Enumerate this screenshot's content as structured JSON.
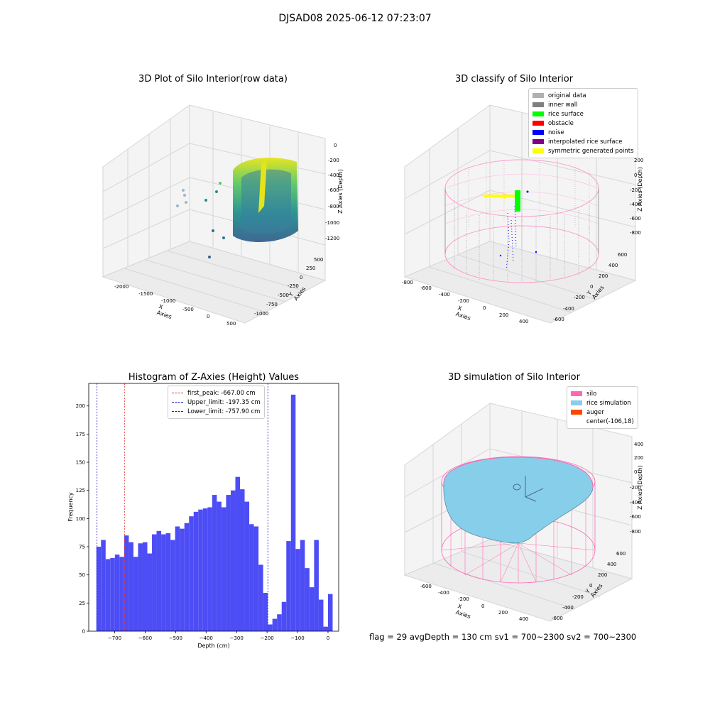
{
  "figure_title": "DJSAD08 2025-06-12 07:23:07",
  "footer": "flag = 29  avgDepth = 130 cm  sv1 = 700~2300  sv2 = 700~2300",
  "colors": {
    "hist_bar": "#4d4df5",
    "first_peak": "#e03030",
    "limits": "#2020c8",
    "silo": "#ff69b4",
    "rice_simulation": "#87ceeb",
    "auger": "#ff4500"
  },
  "panel1": {
    "title": "3D Plot of Silo Interior(row data)",
    "xlabel": "X Axies",
    "ylabel": "Y Axies",
    "zlabel": "Z Axies (Depth)",
    "x_ticks": [
      "-2000",
      "-1500",
      "-1000",
      "-500",
      "0",
      "500"
    ],
    "y_ticks": [
      "500",
      "250",
      "0",
      "-250",
      "-500",
      "-750",
      "-1000"
    ],
    "z_ticks": [
      "0",
      "-200",
      "-400",
      "-600",
      "-800",
      "-1000",
      "-1200"
    ]
  },
  "panel2": {
    "title": "3D classify of Silo Interior",
    "xlabel": "X Axies",
    "ylabel": "Y Axies",
    "zlabel": "Z Axies (Depth)",
    "x_ticks": [
      "-800",
      "-600",
      "-400",
      "-200",
      "0",
      "200",
      "400"
    ],
    "y_ticks": [
      "600",
      "400",
      "200",
      "0",
      "-200",
      "-400",
      "-600"
    ],
    "z_ticks": [
      "200",
      "0",
      "-200",
      "-400",
      "-600",
      "-800"
    ],
    "legend": [
      {
        "label": "original data",
        "color": "#b0b0b0"
      },
      {
        "label": "inner wall",
        "color": "#808080"
      },
      {
        "label": "rice surface",
        "color": "#00ff00"
      },
      {
        "label": "obstacle",
        "color": "#ff0000"
      },
      {
        "label": "noise",
        "color": "#0000ff"
      },
      {
        "label": "interpolated rice surface",
        "color": "#800080"
      },
      {
        "label": "symmetric generated points",
        "color": "#ffff00"
      }
    ]
  },
  "panel4": {
    "title": "3D simulation of Silo Interior",
    "xlabel": "X Axies",
    "ylabel": "Y Axies",
    "zlabel": "Z Axies (Depth)",
    "x_ticks": [
      "-600",
      "-400",
      "-200",
      "0",
      "200",
      "400"
    ],
    "y_ticks": [
      "600",
      "400",
      "200",
      "0",
      "-200",
      "-400",
      "-600"
    ],
    "z_ticks": [
      "400",
      "200",
      "0",
      "-200",
      "-400",
      "-600",
      "-800"
    ],
    "legend": [
      {
        "label": "silo",
        "color": "#ff69b4"
      },
      {
        "label": "rice simulation",
        "color": "#87ceeb"
      },
      {
        "label": "auger",
        "color": "#ff4500"
      },
      {
        "label": "center(-106,18)",
        "color": ""
      }
    ]
  },
  "chart_data": [
    {
      "type": "histogram",
      "title": "Histogram of Z-Axies (Height) Values",
      "xlabel": "Depth (cm)",
      "ylabel": "Frequency",
      "xlim": [
        -785,
        35
      ],
      "ylim": [
        0,
        220
      ],
      "x_ticks": [
        -700,
        -600,
        -500,
        -400,
        -300,
        -200,
        -100,
        0
      ],
      "y_ticks": [
        0,
        25,
        50,
        75,
        100,
        125,
        150,
        175,
        200
      ],
      "bin_start": -760,
      "bin_width": 15.2,
      "values": [
        75,
        81,
        64,
        65,
        68,
        66,
        85,
        79,
        66,
        78,
        79,
        69,
        86,
        89,
        86,
        87,
        81,
        93,
        91,
        96,
        102,
        106,
        108,
        109,
        110,
        121,
        115,
        110,
        121,
        125,
        137,
        126,
        115,
        95,
        93,
        59,
        34,
        6,
        11,
        15,
        26,
        80,
        210,
        73,
        81,
        56,
        39,
        81,
        28,
        4,
        33
      ],
      "reference_lines": [
        {
          "label": "first_peak: -667.00 cm",
          "x": -667.0,
          "style": "red"
        },
        {
          "label": "Upper_limit: -197.35 cm",
          "x": -197.35,
          "style": "blue"
        },
        {
          "label": "Lower_limit: -757.90 cm",
          "x": -757.9,
          "style": "blue"
        }
      ]
    }
  ]
}
